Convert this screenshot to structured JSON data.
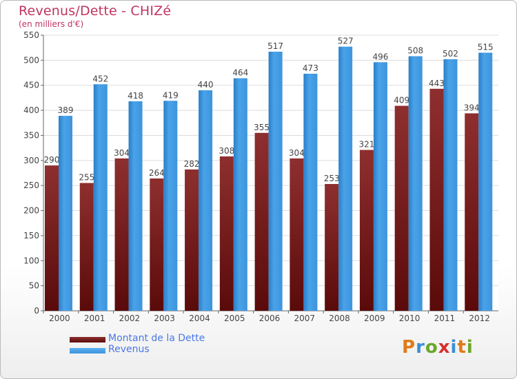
{
  "chart_data": {
    "type": "bar",
    "title": "Revenus/Dette - CHIZé",
    "subtitle": "(en milliers d'€)",
    "categories": [
      "2000",
      "2001",
      "2002",
      "2003",
      "2004",
      "2005",
      "2006",
      "2007",
      "2008",
      "2009",
      "2010",
      "2011",
      "2012"
    ],
    "series": [
      {
        "name": "Montant de la Dette",
        "color": "#7a1c1c",
        "values": [
          290,
          255,
          304,
          264,
          282,
          308,
          355,
          304,
          253,
          321,
          409,
          443,
          394
        ]
      },
      {
        "name": "Revenus",
        "color": "#3d94dd",
        "values": [
          389,
          452,
          418,
          419,
          440,
          464,
          517,
          473,
          527,
          496,
          508,
          502,
          515
        ]
      }
    ],
    "yticks": [
      0,
      50,
      100,
      150,
      200,
      250,
      300,
      350,
      400,
      450,
      500,
      550
    ],
    "ylim": [
      0,
      550
    ],
    "grid": true,
    "legend_position": "bottom-left"
  },
  "logo": {
    "letters": [
      "P",
      "r",
      "o",
      "x",
      "i",
      "t",
      "i"
    ],
    "colors": [
      "#e07b1a",
      "#3a8fd6",
      "#6aa72b",
      "#d4302f",
      "#3a8fd6",
      "#e07b1a",
      "#6aa72b"
    ]
  }
}
